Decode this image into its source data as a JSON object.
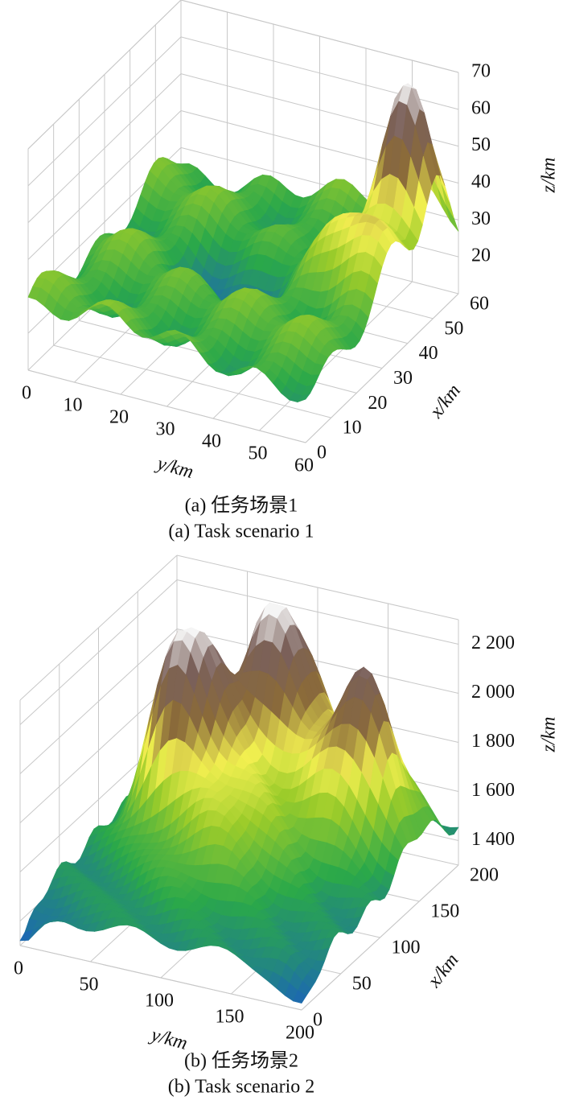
{
  "chart_data": [
    {
      "type": "surface3d",
      "xlabel": "x/km",
      "ylabel": "y/km",
      "zlabel": "z/km",
      "caption_cn": "(a) 任务场景1",
      "caption_en": "(a) Task scenario 1",
      "xlim": [
        0,
        60
      ],
      "ylim": [
        0,
        60
      ],
      "zlim": [
        10,
        70
      ],
      "xticks": [
        0,
        10,
        20,
        30,
        40,
        50,
        60
      ],
      "yticks": [
        0,
        10,
        20,
        30,
        40,
        50,
        60
      ],
      "zticks": [
        20,
        30,
        40,
        50,
        60,
        70
      ],
      "grid": true
    },
    {
      "type": "surface3d",
      "xlabel": "x/km",
      "ylabel": "y/km",
      "zlabel": "z/km",
      "caption_cn": "(b) 任务场景2",
      "caption_en": "(b) Task scenario 2",
      "xlim": [
        0,
        200
      ],
      "ylim": [
        0,
        200
      ],
      "zlim": [
        1300,
        2300
      ],
      "xticks": [
        0,
        50,
        100,
        150,
        200
      ],
      "yticks": [
        0,
        50,
        100,
        150,
        200
      ],
      "zticks": [
        {
          "value": 1400,
          "label": "1 400"
        },
        {
          "value": 1600,
          "label": "1 600"
        },
        {
          "value": 1800,
          "label": "1 800"
        },
        {
          "value": 2000,
          "label": "2 000"
        },
        {
          "value": 2200,
          "label": "2 200"
        }
      ],
      "grid": true
    }
  ]
}
